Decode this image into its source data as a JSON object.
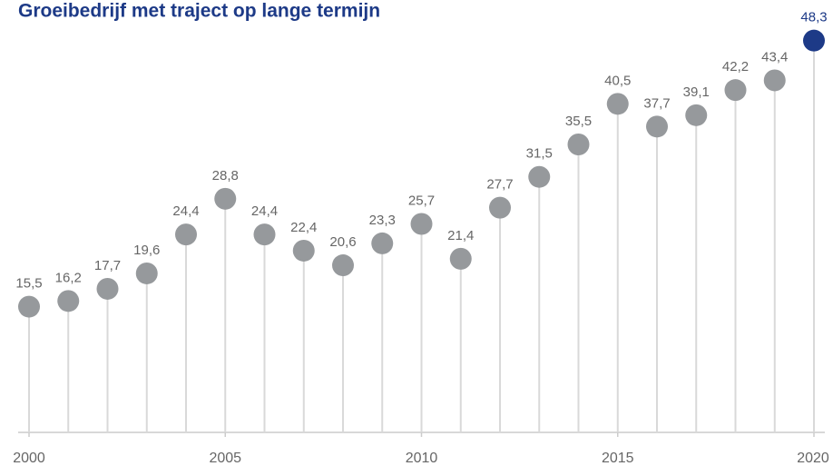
{
  "chart_data": {
    "type": "lollipop",
    "title": "Groeibedrijf met traject op lange termijn",
    "x": [
      2000,
      2001,
      2002,
      2003,
      2004,
      2005,
      2006,
      2007,
      2008,
      2009,
      2010,
      2011,
      2012,
      2013,
      2014,
      2015,
      2016,
      2017,
      2018,
      2019,
      2020
    ],
    "values": [
      15.5,
      16.2,
      17.7,
      19.6,
      24.4,
      28.8,
      24.4,
      22.4,
      20.6,
      23.3,
      25.7,
      21.4,
      27.7,
      31.5,
      35.5,
      40.5,
      37.7,
      39.1,
      42.2,
      43.4,
      48.3
    ],
    "value_labels": [
      "15,5",
      "16,2",
      "17,7",
      "19,6",
      "24,4",
      "28,8",
      "24,4",
      "22,4",
      "20,6",
      "23,3",
      "25,7",
      "21,4",
      "27,7",
      "31,5",
      "35,5",
      "40,5",
      "37,7",
      "39,1",
      "42,2",
      "43,4",
      "48,3"
    ],
    "colors": [
      "#96999c",
      "#96999c",
      "#96999c",
      "#96999c",
      "#96999c",
      "#96999c",
      "#96999c",
      "#96999c",
      "#96999c",
      "#96999c",
      "#96999c",
      "#96999c",
      "#96999c",
      "#96999c",
      "#96999c",
      "#96999c",
      "#96999c",
      "#96999c",
      "#96999c",
      "#96999c",
      "#1d3a87"
    ],
    "xlim": [
      2000,
      2020
    ],
    "xticks": [
      2000,
      2005,
      2010,
      2015,
      2020
    ],
    "ylim": [
      0,
      50
    ]
  }
}
